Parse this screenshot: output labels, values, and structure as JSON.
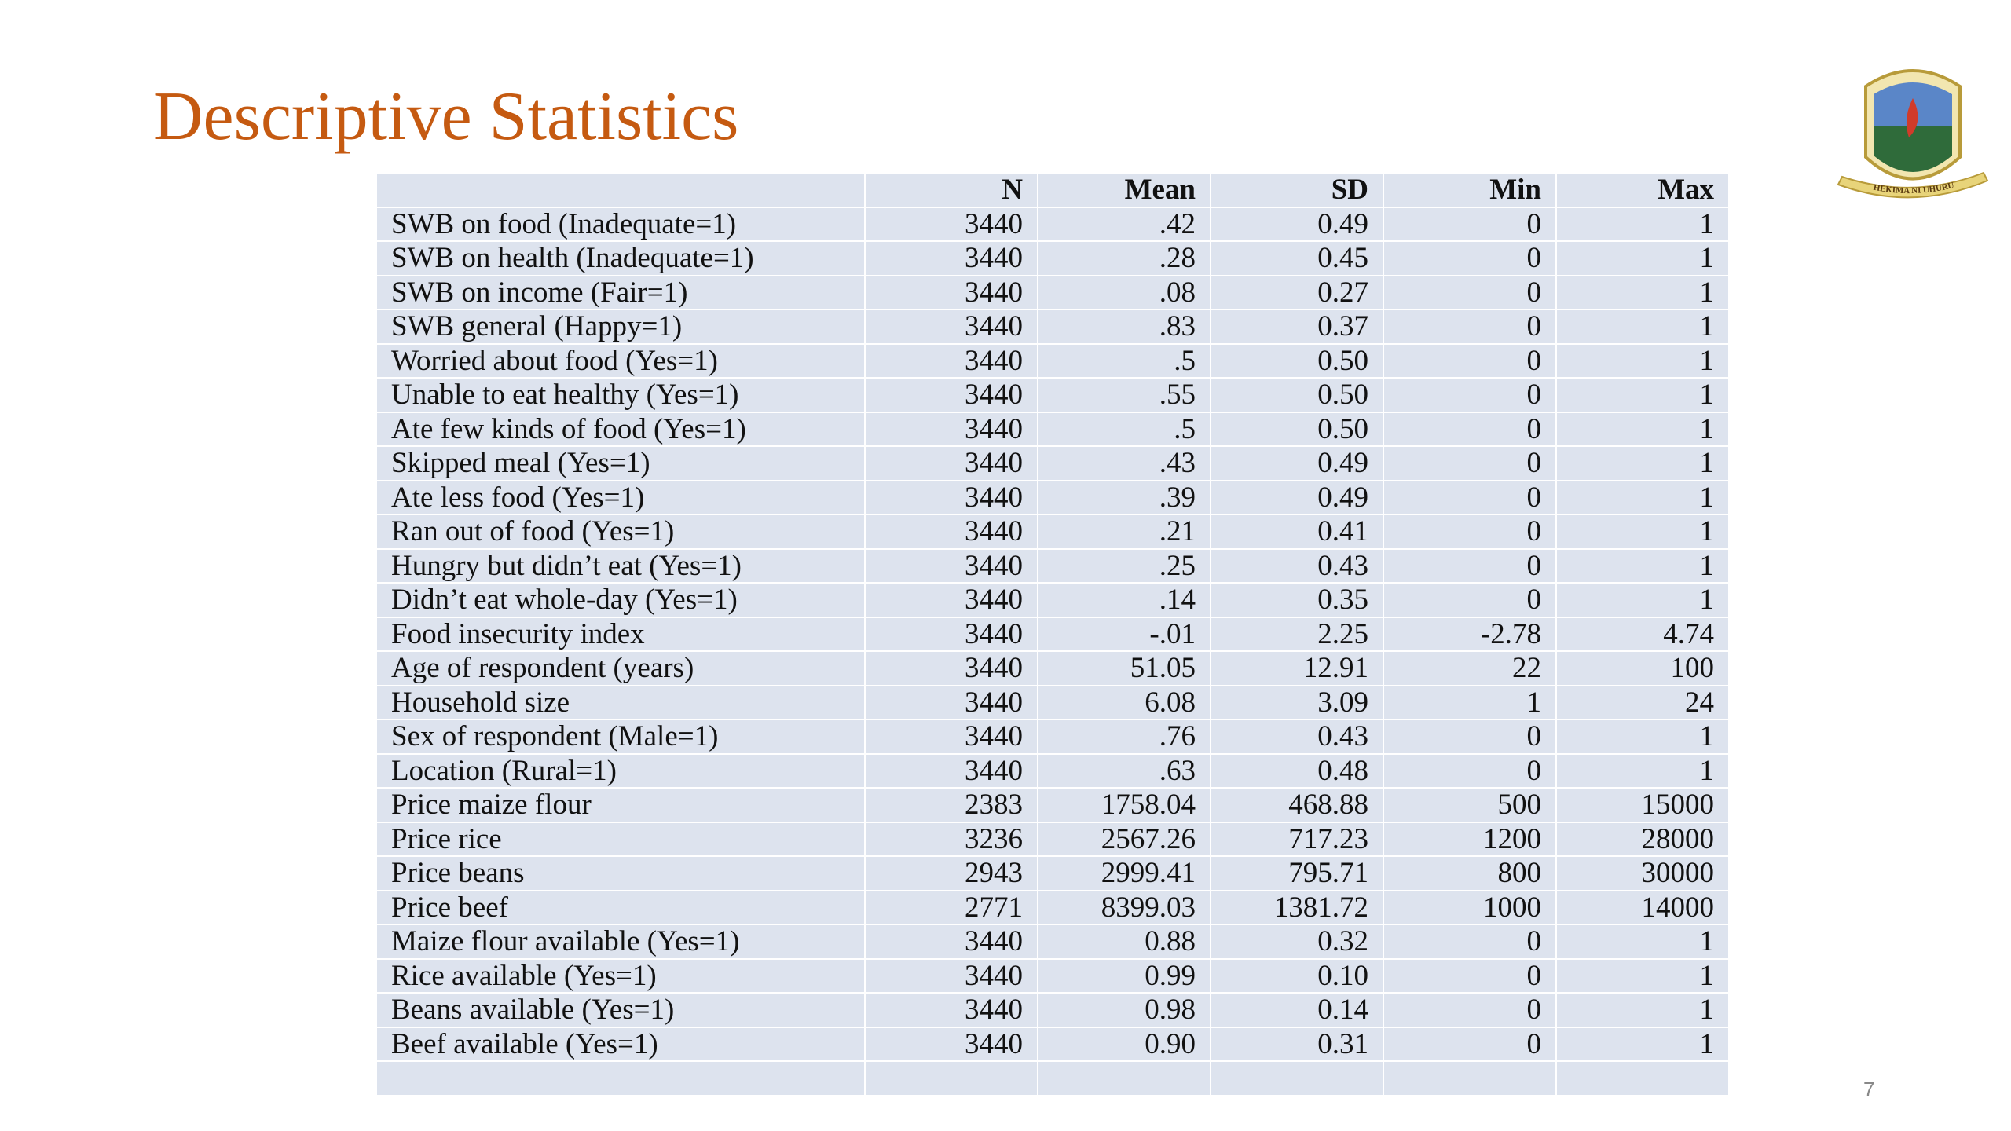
{
  "header": {
    "title": "Descriptive Statistics"
  },
  "table": {
    "columns": [
      "N",
      "Mean",
      "SD",
      "Min",
      "Max"
    ],
    "rows": [
      [
        "SWB on food (Inadequate=1)",
        "3440",
        ".42",
        "0.49",
        "0",
        "1"
      ],
      [
        "SWB on health (Inadequate=1)",
        "3440",
        ".28",
        "0.45",
        "0",
        "1"
      ],
      [
        "SWB on income (Fair=1)",
        "3440",
        ".08",
        "0.27",
        "0",
        "1"
      ],
      [
        "SWB general (Happy=1)",
        "3440",
        ".83",
        "0.37",
        "0",
        "1"
      ],
      [
        "Worried about food (Yes=1)",
        "3440",
        ".5",
        "0.50",
        "0",
        "1"
      ],
      [
        "Unable to eat healthy (Yes=1)",
        "3440",
        ".55",
        "0.50",
        "0",
        "1"
      ],
      [
        "Ate few kinds of food (Yes=1)",
        "3440",
        ".5",
        "0.50",
        "0",
        "1"
      ],
      [
        "Skipped meal (Yes=1)",
        "3440",
        ".43",
        "0.49",
        "0",
        "1"
      ],
      [
        "Ate less food (Yes=1)",
        "3440",
        ".39",
        "0.49",
        "0",
        "1"
      ],
      [
        "Ran out of food (Yes=1)",
        "3440",
        ".21",
        "0.41",
        "0",
        "1"
      ],
      [
        "Hungry but didn’t eat (Yes=1)",
        "3440",
        ".25",
        "0.43",
        "0",
        "1"
      ],
      [
        "Didn’t eat whole-day (Yes=1)",
        "3440",
        ".14",
        "0.35",
        "0",
        "1"
      ],
      [
        "Food insecurity index",
        "3440",
        "-.01",
        "2.25",
        "-2.78",
        "4.74"
      ],
      [
        "Age of respondent (years)",
        "3440",
        "51.05",
        "12.91",
        "22",
        "100"
      ],
      [
        "Household size",
        "3440",
        "6.08",
        "3.09",
        "1",
        "24"
      ],
      [
        "Sex of respondent (Male=1)",
        "3440",
        ".76",
        "0.43",
        "0",
        "1"
      ],
      [
        "Location (Rural=1)",
        "3440",
        ".63",
        "0.48",
        "0",
        "1"
      ],
      [
        "Price maize flour",
        "2383",
        "1758.04",
        "468.88",
        "500",
        "15000"
      ],
      [
        "Price rice",
        "3236",
        "2567.26",
        "717.23",
        "1200",
        "28000"
      ],
      [
        "Price beans",
        "2943",
        "2999.41",
        "795.71",
        "800",
        "30000"
      ],
      [
        "Price beef",
        "2771",
        "8399.03",
        "1381.72",
        "1000",
        "14000"
      ],
      [
        "Maize flour available (Yes=1)",
        "3440",
        "0.88",
        "0.32",
        "0",
        "1"
      ],
      [
        "Rice available (Yes=1)",
        "3440",
        "0.99",
        "0.10",
        "0",
        "1"
      ],
      [
        "Beans available (Yes=1)",
        "3440",
        "0.98",
        "0.14",
        "0",
        "1"
      ],
      [
        "Beef available (Yes=1)",
        "3440",
        "0.90",
        "0.31",
        "0",
        "1"
      ]
    ]
  },
  "logo": {
    "motto": "HEKIMA NI UHURU"
  },
  "footer": {
    "page_number": "7"
  }
}
